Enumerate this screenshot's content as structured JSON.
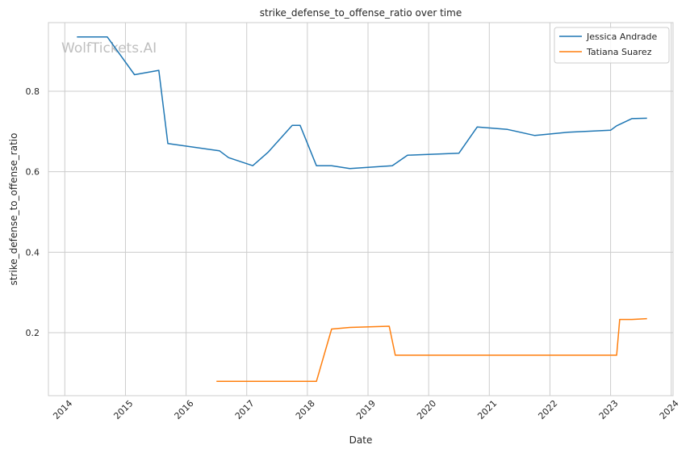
{
  "chart_data": {
    "type": "line",
    "title": "strike_defense_to_offense_ratio over time",
    "xlabel": "Date",
    "ylabel": "strike_defense_to_offense_ratio",
    "watermark": "WolfTickets.AI",
    "xlim": [
      2013.73,
      2024.03
    ],
    "ylim": [
      0.0435,
      0.9705
    ],
    "xticks": [
      "2014",
      "2015",
      "2016",
      "2017",
      "2018",
      "2019",
      "2020",
      "2021",
      "2022",
      "2023",
      "2024"
    ],
    "yticks": [
      "0.2",
      "0.4",
      "0.6",
      "0.8"
    ],
    "grid": true,
    "legend_position": "top-right",
    "series": [
      {
        "name": "Jessica Andrade",
        "color": "#1f77b4",
        "points": [
          [
            2014.2,
            0.935
          ],
          [
            2014.7,
            0.935
          ],
          [
            2015.15,
            0.841
          ],
          [
            2015.55,
            0.852
          ],
          [
            2015.7,
            0.67
          ],
          [
            2016.5,
            0.653
          ],
          [
            2016.55,
            0.652
          ],
          [
            2016.7,
            0.635
          ],
          [
            2017.1,
            0.615
          ],
          [
            2017.35,
            0.648
          ],
          [
            2017.75,
            0.715
          ],
          [
            2017.88,
            0.715
          ],
          [
            2018.15,
            0.615
          ],
          [
            2018.4,
            0.615
          ],
          [
            2018.7,
            0.608
          ],
          [
            2019.4,
            0.615
          ],
          [
            2019.65,
            0.641
          ],
          [
            2020.5,
            0.646
          ],
          [
            2020.8,
            0.711
          ],
          [
            2021.3,
            0.705
          ],
          [
            2021.75,
            0.69
          ],
          [
            2022.3,
            0.698
          ],
          [
            2023.0,
            0.703
          ],
          [
            2023.1,
            0.714
          ],
          [
            2023.35,
            0.732
          ],
          [
            2023.6,
            0.733
          ]
        ]
      },
      {
        "name": "Tatiana Suarez",
        "color": "#ff7f0e",
        "points": [
          [
            2016.5,
            0.079
          ],
          [
            2018.15,
            0.079
          ],
          [
            2018.4,
            0.209
          ],
          [
            2018.7,
            0.213
          ],
          [
            2019.35,
            0.216
          ],
          [
            2019.45,
            0.144
          ],
          [
            2023.1,
            0.144
          ],
          [
            2023.15,
            0.233
          ],
          [
            2023.35,
            0.233
          ],
          [
            2023.6,
            0.235
          ]
        ]
      }
    ]
  }
}
